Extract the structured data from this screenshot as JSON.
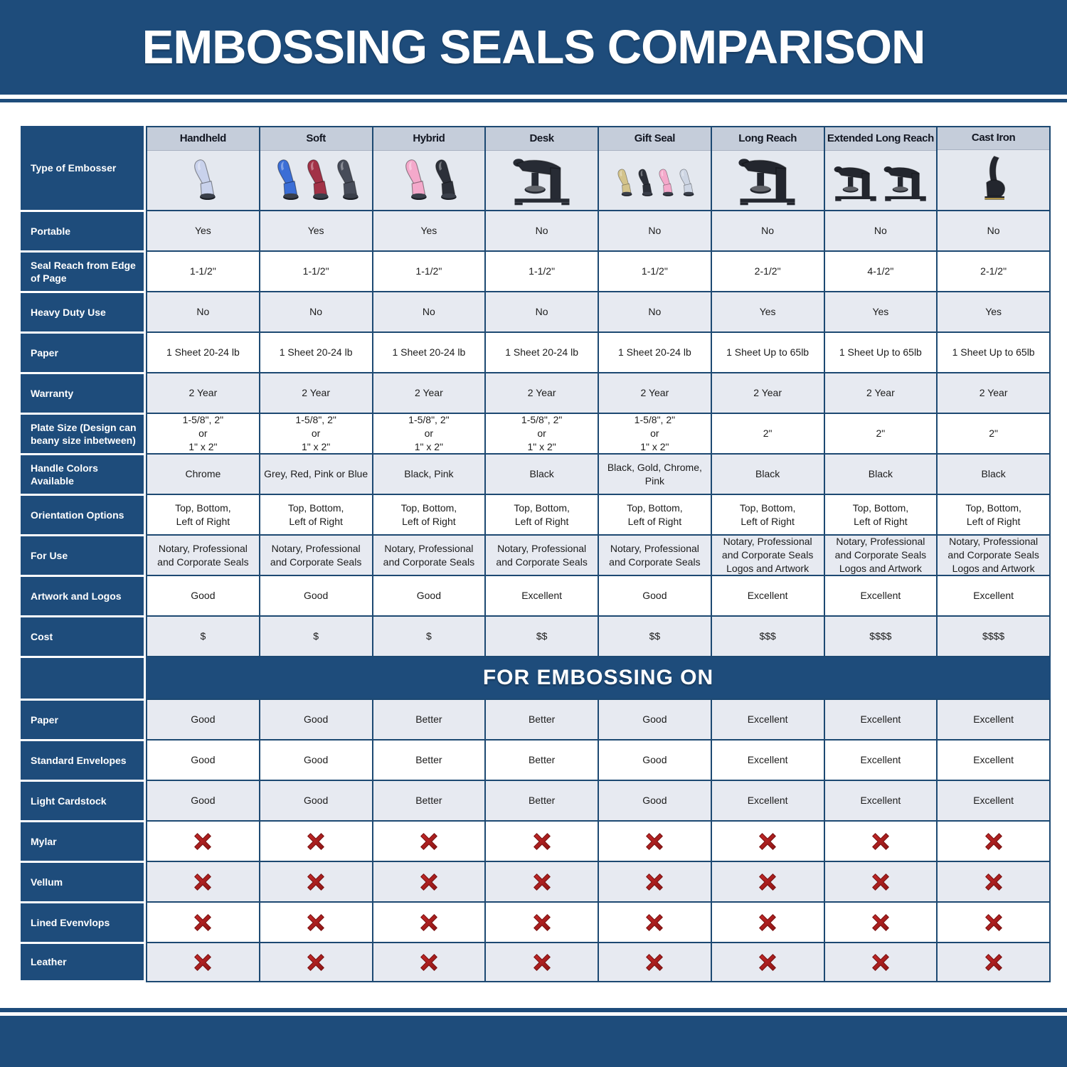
{
  "page": {
    "title": "EMBOSSING SEALS COMPARISON"
  },
  "table": {
    "corner_label": "Type of Embosser",
    "columns": [
      "Handheld",
      "Soft",
      "Hybrid",
      "Desk",
      "Gift Seal",
      "Long Reach",
      "Extended Long Reach",
      "Cast Iron"
    ],
    "embosser_icons": [
      {
        "name": "handheld-embosser-photo",
        "style": "handheld",
        "colors": [
          "#c9d2ec"
        ]
      },
      {
        "name": "soft-embosser-photo",
        "style": "handheld",
        "colors": [
          "#3b6ed6",
          "#a23247",
          "#474c59"
        ]
      },
      {
        "name": "hybrid-embosser-photo",
        "style": "handheld",
        "colors": [
          "#f4a9cb",
          "#2c3039"
        ]
      },
      {
        "name": "desk-embosser-photo",
        "style": "desk",
        "colors": [
          "#272b34"
        ]
      },
      {
        "name": "gift-seal-embosser-photo",
        "style": "handheld",
        "colors": [
          "#d3c38b",
          "#2c3039",
          "#f4a9cb",
          "#ced6e4"
        ]
      },
      {
        "name": "long-reach-embosser-photo",
        "style": "desk",
        "colors": [
          "#23262e"
        ]
      },
      {
        "name": "extended-long-reach-embosser-photo",
        "style": "desk",
        "colors": [
          "#23262e",
          "#23262e"
        ]
      },
      {
        "name": "cast-iron-embosser-photo",
        "style": "cast",
        "colors": [
          "#23262e"
        ]
      }
    ],
    "rows": [
      {
        "label": "Portable",
        "values": [
          "Yes",
          "Yes",
          "Yes",
          "No",
          "No",
          "No",
          "No",
          "No"
        ]
      },
      {
        "label": "Seal Reach from Edge of Page",
        "values": [
          "1-1/2\"",
          "1-1/2\"",
          "1-1/2\"",
          "1-1/2\"",
          "1-1/2\"",
          "2-1/2\"",
          "4-1/2\"",
          "2-1/2\""
        ]
      },
      {
        "label": "Heavy Duty Use",
        "values": [
          "No",
          "No",
          "No",
          "No",
          "No",
          "Yes",
          "Yes",
          "Yes"
        ]
      },
      {
        "label": "Paper",
        "values": [
          "1 Sheet 20-24 lb",
          "1 Sheet 20-24 lb",
          "1 Sheet 20-24 lb",
          "1 Sheet 20-24 lb",
          "1 Sheet 20-24 lb",
          "1 Sheet Up to 65lb",
          "1 Sheet Up to 65lb",
          "1 Sheet Up to 65lb"
        ]
      },
      {
        "label": "Warranty",
        "values": [
          "2 Year",
          "2 Year",
          "2 Year",
          "2 Year",
          "2 Year",
          "2 Year",
          "2 Year",
          "2 Year"
        ]
      },
      {
        "label": "Plate Size (Design can beany size inbetween)",
        "values": [
          "1-5/8\", 2\"\nor\n1\" x 2\"",
          "1-5/8\", 2\"\nor\n1\" x 2\"",
          "1-5/8\", 2\"\nor\n1\" x 2\"",
          "1-5/8\", 2\"\nor\n1\" x 2\"",
          "1-5/8\", 2\"\nor\n1\" x 2\"",
          "2\"",
          "2\"",
          "2\""
        ]
      },
      {
        "label": "Handle Colors Available",
        "values": [
          "Chrome",
          "Grey, Red, Pink or Blue",
          "Black, Pink",
          "Black",
          "Black, Gold, Chrome, Pink",
          "Black",
          "Black",
          "Black"
        ]
      },
      {
        "label": "Orientation Options",
        "values": [
          "Top, Bottom,\nLeft of Right",
          "Top, Bottom,\nLeft of Right",
          "Top, Bottom,\nLeft of Right",
          "Top, Bottom,\nLeft of Right",
          "Top, Bottom,\nLeft of Right",
          "Top, Bottom,\nLeft of Right",
          "Top, Bottom,\nLeft of Right",
          "Top, Bottom,\nLeft of Right"
        ]
      },
      {
        "label": "For Use",
        "values": [
          "Notary, Professional\nand Corporate Seals",
          "Notary, Professional\nand Corporate Seals",
          "Notary, Professional\nand Corporate Seals",
          "Notary, Professional\nand Corporate Seals",
          "Notary, Professional\nand Corporate Seals",
          "Notary, Professional\nand Corporate Seals\nLogos and Artwork",
          "Notary, Professional\nand Corporate Seals\nLogos and Artwork",
          "Notary, Professional\nand Corporate Seals\nLogos and Artwork"
        ]
      },
      {
        "label": "Artwork and Logos",
        "values": [
          "Good",
          "Good",
          "Good",
          "Excellent",
          "Good",
          "Excellent",
          "Excellent",
          "Excellent"
        ]
      },
      {
        "label": "Cost",
        "values": [
          "$",
          "$",
          "$",
          "$$",
          "$$",
          "$$$",
          "$$$$",
          "$$$$"
        ]
      }
    ],
    "section_header": "FOR EMBOSSING ON",
    "embossing_rows": [
      {
        "label": "Paper",
        "values": [
          "Good",
          "Good",
          "Better",
          "Better",
          "Good",
          "Excellent",
          "Excellent",
          "Excellent"
        ]
      },
      {
        "label": "Standard Envelopes",
        "values": [
          "Good",
          "Good",
          "Better",
          "Better",
          "Good",
          "Excellent",
          "Excellent",
          "Excellent"
        ]
      },
      {
        "label": "Light Cardstock",
        "values": [
          "Good",
          "Good",
          "Better",
          "Better",
          "Good",
          "Excellent",
          "Excellent",
          "Excellent"
        ]
      },
      {
        "label": "Mylar",
        "type": "icons"
      },
      {
        "label": "Vellum",
        "type": "icons"
      },
      {
        "label": "Lined Evenvlops",
        "type": "icons"
      },
      {
        "label": "Leather",
        "type": "icons"
      }
    ],
    "not_suitable_icon": "red-x",
    "icon_colors": {
      "red_x_dark": "#8e1515",
      "red_x_light": "#c62828"
    }
  }
}
